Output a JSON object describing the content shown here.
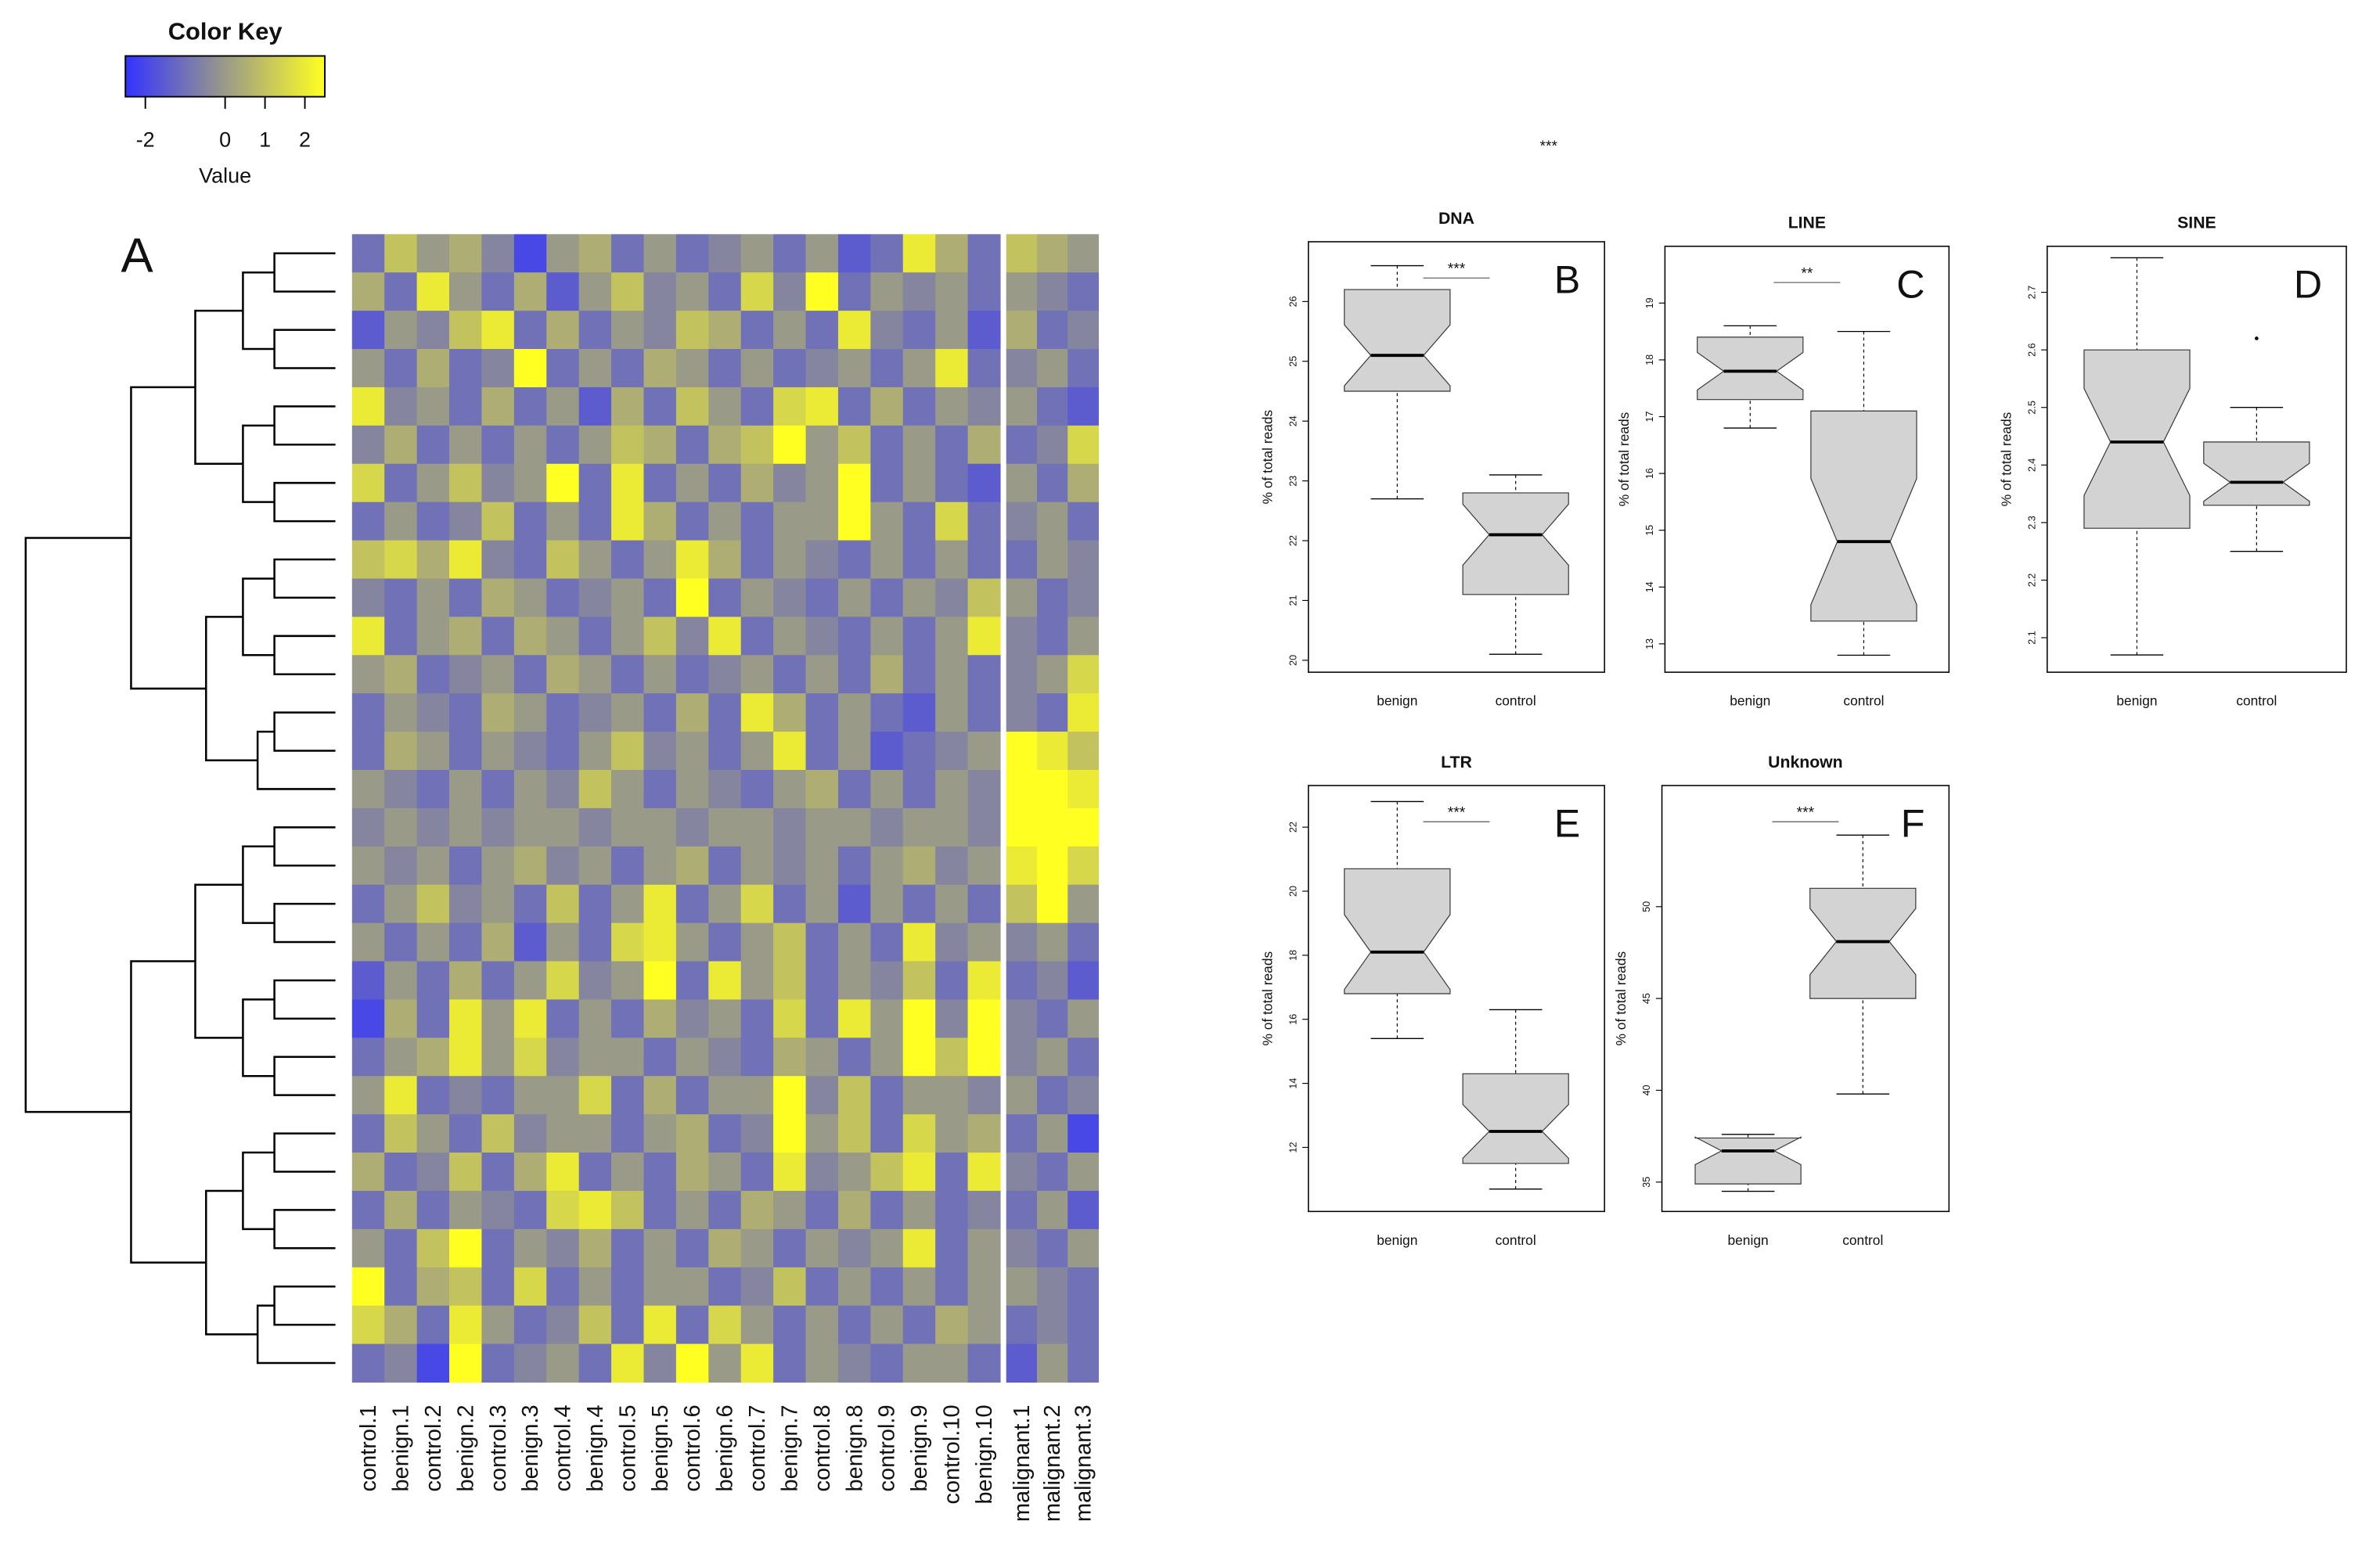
{
  "annotation": "***",
  "chart_data": [
    {
      "type": "heatmap",
      "panel_label": "A",
      "color_key": {
        "title": "Color Key",
        "xlabel": "Value",
        "lim": [
          -2.5,
          2.5
        ],
        "ticks": [
          -2,
          0,
          1,
          2
        ],
        "colors": [
          "#3333ff",
          "#9a9a88",
          "#ffff22"
        ]
      },
      "columns": [
        "control.1",
        "benign.1",
        "control.2",
        "benign.2",
        "control.3",
        "benign.3",
        "control.4",
        "benign.4",
        "control.5",
        "benign.5",
        "control.6",
        "benign.6",
        "control.7",
        "benign.7",
        "control.8",
        "benign.8",
        "control.9",
        "benign.9",
        "control.10",
        "benign.10",
        "malignant.1",
        "malignant.2",
        "malignant.3"
      ],
      "split_after": 20,
      "values": [
        [
          -1,
          1,
          0,
          0.5,
          -0.5,
          -2,
          0,
          0.5,
          -1,
          0,
          -1,
          -0.5,
          0,
          -1,
          0,
          -1.5,
          -1,
          2,
          0.5,
          -1,
          1,
          0.5,
          0
        ],
        [
          0.5,
          -1,
          2,
          0,
          -1,
          0.5,
          -1.5,
          0,
          1,
          -0.5,
          0,
          -1,
          1.5,
          -0.5,
          2.5,
          -1,
          0,
          -0.5,
          0,
          -1,
          0,
          -0.5,
          -1
        ],
        [
          -1.5,
          0,
          -0.5,
          1,
          2,
          -1,
          0.5,
          -1,
          0,
          -0.5,
          1,
          0.5,
          -1,
          0,
          -1,
          2,
          -0.5,
          -1,
          0,
          -1.5,
          0.5,
          -1,
          -0.5
        ],
        [
          0,
          -1,
          0.5,
          -1,
          -0.5,
          2.5,
          -1,
          0,
          -1,
          0.5,
          0,
          -1,
          0,
          -1,
          -0.5,
          0,
          -1,
          0,
          2,
          -1,
          -0.5,
          0,
          -1
        ],
        [
          2,
          -0.5,
          0,
          -1,
          0.5,
          -1,
          0,
          -1.5,
          0.5,
          -1,
          1,
          0,
          -1,
          1.5,
          2,
          -1,
          0.5,
          -1,
          0,
          -0.5,
          0,
          -1,
          -1.5
        ],
        [
          -0.5,
          0.5,
          -1,
          0,
          -1,
          0,
          -1,
          0,
          1,
          0.5,
          -1,
          0.5,
          1,
          2.5,
          0,
          1,
          -1,
          0,
          -1,
          0.5,
          -1,
          -0.5,
          1.5
        ],
        [
          1.5,
          -1,
          0,
          1,
          -0.5,
          0,
          2.5,
          -1,
          2,
          -1,
          0,
          -1,
          0.5,
          -0.5,
          0,
          2.5,
          -1,
          0,
          -1,
          -1.5,
          0,
          -1,
          0.5
        ],
        [
          -1,
          0,
          -1,
          -0.5,
          1,
          -1,
          0,
          -1,
          2,
          0.5,
          -1,
          0,
          -1,
          0,
          0,
          2.5,
          0,
          -1,
          1.5,
          -1,
          -0.5,
          0,
          -1
        ],
        [
          1,
          1.5,
          0.5,
          2,
          -0.5,
          -1,
          1,
          0,
          -1,
          0,
          2,
          0.5,
          -1,
          0,
          -0.5,
          -1,
          0,
          -1,
          0,
          -1,
          -1,
          0,
          -0.5
        ],
        [
          -0.5,
          -1,
          0,
          -1,
          0.5,
          0,
          -1,
          -0.5,
          0,
          -1,
          2.5,
          -1,
          0,
          -0.5,
          -1,
          0,
          -1,
          0,
          -0.5,
          1,
          0,
          -1,
          -0.5
        ],
        [
          2,
          -1,
          0,
          0.5,
          -1,
          0.5,
          0,
          -1,
          0,
          1,
          -0.5,
          2,
          -1,
          0,
          -0.5,
          -1,
          0,
          -1,
          0,
          2,
          -0.5,
          -1,
          0
        ],
        [
          0,
          0.5,
          -1,
          -0.5,
          0,
          -1,
          0.5,
          0,
          -1,
          0,
          -1,
          -0.5,
          0,
          -1,
          0,
          -1,
          0.5,
          -1,
          0,
          -1,
          -0.5,
          0,
          1.5
        ],
        [
          -1,
          0,
          -0.5,
          -1,
          0.5,
          0,
          -1,
          -0.5,
          0,
          -1,
          0.5,
          -1,
          2,
          0.5,
          -1,
          0,
          -1,
          -1.5,
          0,
          -1,
          -0.5,
          -1,
          2
        ],
        [
          -1,
          0.5,
          0,
          -1,
          0,
          -0.5,
          -1,
          0,
          1,
          -0.5,
          0,
          -1,
          0,
          2,
          -1,
          0,
          -1.5,
          -1,
          -0.5,
          0,
          2.5,
          2,
          1
        ],
        [
          0,
          -0.5,
          -1,
          0,
          -1,
          0,
          -0.5,
          1,
          0,
          -1,
          0,
          -0.5,
          -1,
          0,
          0.5,
          -1,
          0,
          -1,
          0,
          -0.5,
          2.5,
          2.5,
          2
        ],
        [
          -0.5,
          0,
          -0.5,
          0,
          -0.5,
          0,
          0,
          -0.5,
          0,
          0,
          -0.5,
          0,
          0,
          -0.5,
          0,
          0,
          -0.5,
          0,
          0,
          -0.5,
          2.5,
          2.5,
          2.5
        ],
        [
          0,
          -0.5,
          0,
          -1,
          0,
          0.5,
          -0.5,
          0,
          -1,
          0,
          0.5,
          -1,
          0,
          -0.5,
          0,
          -1,
          0,
          0.5,
          -0.5,
          0,
          2,
          2.5,
          1.5
        ],
        [
          -1,
          0,
          1,
          -0.5,
          0,
          -1,
          1,
          -1,
          0,
          2,
          -1,
          0,
          1.5,
          -1,
          0,
          -1.5,
          0,
          -1,
          0,
          -1,
          1,
          2.5,
          0
        ],
        [
          0,
          -1,
          0,
          -1,
          0.5,
          -1.5,
          0,
          -1,
          1.5,
          2,
          0,
          -1,
          0,
          1,
          -1,
          0,
          -1,
          2,
          -0.5,
          0,
          -0.5,
          0,
          -1
        ],
        [
          -1.5,
          0,
          -1,
          0.5,
          -1,
          0,
          1.5,
          -0.5,
          0,
          2.5,
          -1,
          2,
          0,
          1,
          -1,
          0,
          -0.5,
          1,
          -1,
          2,
          -1,
          -0.5,
          -1.5
        ],
        [
          -2,
          0.5,
          -1,
          2,
          0,
          2,
          -1,
          0,
          -1,
          0.5,
          -0.5,
          0,
          -1,
          1.5,
          -1,
          2,
          0,
          2.5,
          -0.5,
          2.5,
          -0.5,
          -1,
          0
        ],
        [
          -1,
          0,
          0.5,
          2,
          0,
          1.5,
          -0.5,
          0,
          0,
          -1,
          0,
          -0.5,
          -1,
          0.5,
          0,
          -1,
          0,
          2.5,
          1,
          2.5,
          -0.5,
          0,
          -1
        ],
        [
          0,
          2,
          -1,
          -0.5,
          -1,
          0,
          0,
          1.5,
          -1,
          0.5,
          -1,
          0,
          0,
          2.5,
          -0.5,
          1,
          -1,
          0,
          0,
          -0.5,
          0,
          -1,
          -0.5
        ],
        [
          -1,
          1,
          0,
          -1,
          1,
          -0.5,
          0,
          0,
          -1,
          0,
          0.5,
          -1,
          -0.5,
          2.5,
          0,
          1,
          -1,
          1.5,
          0,
          0.5,
          -1,
          0,
          -2
        ],
        [
          0.5,
          -1,
          -0.5,
          1,
          -1,
          0.5,
          2,
          -1,
          0,
          -1,
          0.5,
          0,
          -1,
          2,
          -0.5,
          0,
          1,
          2,
          -1,
          2,
          -0.5,
          -1,
          0
        ],
        [
          -1,
          0.5,
          -1,
          0,
          -0.5,
          -1,
          1.5,
          2,
          1,
          -1,
          0,
          -1,
          0.5,
          0,
          -1,
          0.5,
          -1,
          0,
          -1,
          -0.5,
          -1,
          0,
          -1.5
        ],
        [
          0,
          -1,
          1,
          2.5,
          -1,
          0,
          -0.5,
          0.5,
          -1,
          0,
          -1,
          0.5,
          0,
          -1,
          0,
          -0.5,
          0,
          2,
          -1,
          0,
          -0.5,
          -1,
          0
        ],
        [
          2.5,
          -1,
          0.5,
          1,
          -1,
          1.5,
          -1,
          0,
          -1,
          0,
          0,
          -1,
          -0.5,
          1,
          -1,
          0,
          -1,
          0,
          -1,
          0,
          0,
          -0.5,
          -1
        ],
        [
          1.5,
          0.5,
          -1,
          2,
          0,
          -1,
          -0.5,
          1,
          -1,
          2,
          -1,
          1.5,
          0,
          -1,
          0,
          -1,
          0,
          -1,
          0.5,
          0,
          -1,
          -0.5,
          -1
        ],
        [
          -1,
          -0.5,
          -2,
          2.5,
          -1,
          -0.5,
          0,
          -1,
          2,
          -0.5,
          2.5,
          0,
          2,
          -1,
          0,
          -0.5,
          -1,
          0,
          0,
          -1,
          -1.5,
          0,
          -1
        ]
      ]
    },
    {
      "type": "box",
      "title": "DNA",
      "panel_label": "B",
      "ylabel": "% of total reads",
      "categories": [
        "benign",
        "control"
      ],
      "boxes": [
        {
          "whislo": 22.7,
          "q1": 24.5,
          "med": 25.1,
          "q3": 26.2,
          "whishi": 26.6,
          "fliers": []
        },
        {
          "whislo": 20.1,
          "q1": 21.1,
          "med": 22.1,
          "q3": 22.8,
          "whishi": 23.1,
          "fliers": []
        }
      ],
      "ylim": [
        19.8,
        27
      ],
      "yticks": [
        20,
        21,
        22,
        23,
        24,
        25,
        26
      ],
      "significance": "***",
      "fill": "#d3d3d3"
    },
    {
      "type": "box",
      "title": "LINE",
      "panel_label": "C",
      "ylabel": "% of total reads",
      "categories": [
        "benign",
        "control"
      ],
      "boxes": [
        {
          "whislo": 16.8,
          "q1": 17.3,
          "med": 17.8,
          "q3": 18.4,
          "whishi": 18.6,
          "fliers": []
        },
        {
          "whislo": 12.8,
          "q1": 13.4,
          "med": 14.8,
          "q3": 17.1,
          "whishi": 18.5,
          "fliers": []
        }
      ],
      "ylim": [
        12.5,
        20
      ],
      "yticks": [
        13,
        14,
        15,
        16,
        17,
        18,
        19
      ],
      "significance": "**",
      "fill": "#d3d3d3"
    },
    {
      "type": "box",
      "title": "SINE",
      "panel_label": "D",
      "ylabel": "% of total reads",
      "categories": [
        "benign",
        "control"
      ],
      "boxes": [
        {
          "whislo": 2.07,
          "q1": 2.29,
          "med": 2.44,
          "q3": 2.6,
          "whishi": 2.76,
          "fliers": []
        },
        {
          "whislo": 2.25,
          "q1": 2.33,
          "med": 2.37,
          "q3": 2.44,
          "whishi": 2.5,
          "fliers": [
            2.62
          ]
        }
      ],
      "ylim": [
        2.04,
        2.78
      ],
      "yticks": [
        2.1,
        2.2,
        2.3,
        2.4,
        2.5,
        2.6,
        2.7
      ],
      "significance": null,
      "fill": "#d3d3d3"
    },
    {
      "type": "box",
      "title": "LTR",
      "panel_label": "E",
      "ylabel": "% of total reads",
      "categories": [
        "benign",
        "control"
      ],
      "boxes": [
        {
          "whislo": 15.4,
          "q1": 16.8,
          "med": 18.1,
          "q3": 20.7,
          "whishi": 22.8,
          "fliers": []
        },
        {
          "whislo": 10.7,
          "q1": 11.5,
          "med": 12.5,
          "q3": 14.3,
          "whishi": 16.3,
          "fliers": []
        }
      ],
      "ylim": [
        10,
        23.3
      ],
      "yticks": [
        12,
        14,
        16,
        18,
        20,
        22
      ],
      "significance": "***",
      "fill": "#d3d3d3"
    },
    {
      "type": "box",
      "title": "Unknown",
      "panel_label": "F",
      "ylabel": "% of total reads",
      "categories": [
        "benign",
        "control"
      ],
      "boxes": [
        {
          "whislo": 34.5,
          "q1": 34.9,
          "med": 36.7,
          "q3": 37.4,
          "whishi": 37.6,
          "fliers": []
        },
        {
          "whislo": 39.8,
          "q1": 45.0,
          "med": 48.1,
          "q3": 51.0,
          "whishi": 53.9,
          "fliers": []
        }
      ],
      "ylim": [
        33.4,
        56.6
      ],
      "yticks": [
        35,
        40,
        45,
        50
      ],
      "significance": "***",
      "fill": "#d3d3d3"
    }
  ]
}
